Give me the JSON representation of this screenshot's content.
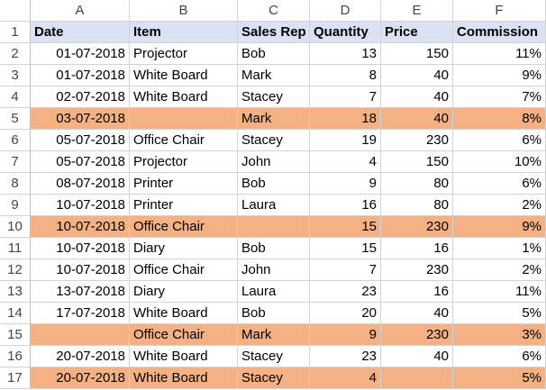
{
  "column_letters": [
    "A",
    "B",
    "C",
    "D",
    "E",
    "F"
  ],
  "header": {
    "row_num": "1",
    "date": "Date",
    "item": "Item",
    "rep": "Sales Rep",
    "qty": "Quantity",
    "price": "Price",
    "commission": "Commission"
  },
  "rows": [
    {
      "n": "2",
      "date": "01-07-2018",
      "item": "Projector",
      "rep": "Bob",
      "qty": "13",
      "price": "150",
      "commission": "11%",
      "highlight": false
    },
    {
      "n": "3",
      "date": "01-07-2018",
      "item": "White Board",
      "rep": "Mark",
      "qty": "8",
      "price": "40",
      "commission": "9%",
      "highlight": false
    },
    {
      "n": "4",
      "date": "02-07-2018",
      "item": "White Board",
      "rep": "Stacey",
      "qty": "7",
      "price": "40",
      "commission": "7%",
      "highlight": false
    },
    {
      "n": "5",
      "date": "03-07-2018",
      "item": "",
      "rep": "Mark",
      "qty": "18",
      "price": "40",
      "commission": "8%",
      "highlight": true
    },
    {
      "n": "6",
      "date": "05-07-2018",
      "item": "Office Chair",
      "rep": "Stacey",
      "qty": "19",
      "price": "230",
      "commission": "6%",
      "highlight": false
    },
    {
      "n": "7",
      "date": "05-07-2018",
      "item": "Projector",
      "rep": "John",
      "qty": "4",
      "price": "150",
      "commission": "10%",
      "highlight": false
    },
    {
      "n": "8",
      "date": "08-07-2018",
      "item": "Printer",
      "rep": "Bob",
      "qty": "9",
      "price": "80",
      "commission": "6%",
      "highlight": false
    },
    {
      "n": "9",
      "date": "10-07-2018",
      "item": "Printer",
      "rep": "Laura",
      "qty": "16",
      "price": "80",
      "commission": "2%",
      "highlight": false
    },
    {
      "n": "10",
      "date": "10-07-2018",
      "item": "Office Chair",
      "rep": "",
      "qty": "15",
      "price": "230",
      "commission": "9%",
      "highlight": true
    },
    {
      "n": "11",
      "date": "10-07-2018",
      "item": "Diary",
      "rep": "Bob",
      "qty": "15",
      "price": "16",
      "commission": "1%",
      "highlight": false
    },
    {
      "n": "12",
      "date": "10-07-2018",
      "item": "Office Chair",
      "rep": "John",
      "qty": "7",
      "price": "230",
      "commission": "2%",
      "highlight": false
    },
    {
      "n": "13",
      "date": "13-07-2018",
      "item": "Diary",
      "rep": "Laura",
      "qty": "23",
      "price": "16",
      "commission": "11%",
      "highlight": false
    },
    {
      "n": "14",
      "date": "17-07-2018",
      "item": "White Board",
      "rep": "Bob",
      "qty": "20",
      "price": "40",
      "commission": "5%",
      "highlight": false
    },
    {
      "n": "15",
      "date": "",
      "item": "Office Chair",
      "rep": "Mark",
      "qty": "9",
      "price": "230",
      "commission": "3%",
      "highlight": true
    },
    {
      "n": "16",
      "date": "20-07-2018",
      "item": "White Board",
      "rep": "Stacey",
      "qty": "23",
      "price": "40",
      "commission": "6%",
      "highlight": false
    },
    {
      "n": "17",
      "date": "20-07-2018",
      "item": "White Board",
      "rep": "Stacey",
      "qty": "4",
      "price": "",
      "commission": "5%",
      "highlight": true
    }
  ],
  "colors": {
    "header_fill": "#d9e1f2",
    "highlight_fill": "#f4b183",
    "gridline": "#d4d4d4"
  }
}
